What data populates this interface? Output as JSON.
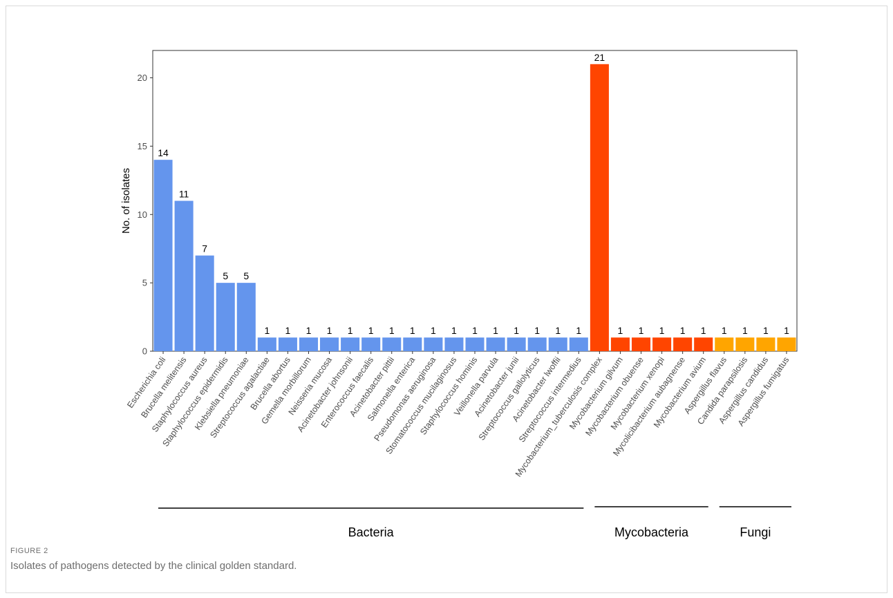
{
  "chart_data": {
    "type": "bar",
    "ylabel": "No. of isolates",
    "xlabel": "",
    "ylim": [
      0,
      22
    ],
    "yticks": [
      0,
      5,
      10,
      15,
      20
    ],
    "grid": false,
    "categories": [
      "Escherichia coli",
      "Brucella melitensis",
      "Staphylococcus aureus",
      "Staphylococcus epidermidis",
      "Klebsiella pneumoniae",
      "Streptococcus agalactiae",
      "Brucella abortus",
      "Gemella morbillorum",
      "Neisseria mucosa",
      "Acinetobacter johnsonii",
      "Enterococcus faecalis",
      "Acinetobacter pittii",
      "Salmonella enterica",
      "Pseudomonas aeruginosa",
      "Stomatococcus mucilaginosus",
      "Staphylococcus hominis",
      "Veillonella parvula",
      "Acinetobacter junii",
      "Streptococcus gallolyticus",
      "Acinetobacter lwoffii",
      "Streptococcus intermedius",
      "Mycobacterium_tuberculosis complex",
      "Mycobacterium gilvum",
      "Mycobacterium obuense",
      "Mycobacterium xenopi",
      "Mycolicibacterium aubagnense",
      "Mycobacterium avium",
      "Aspergillus flavus",
      "Candida parapsilosis",
      "Aspergillus candidus",
      "Aspergillus fumigatus"
    ],
    "values": [
      14,
      11,
      7,
      5,
      5,
      1,
      1,
      1,
      1,
      1,
      1,
      1,
      1,
      1,
      1,
      1,
      1,
      1,
      1,
      1,
      1,
      21,
      1,
      1,
      1,
      1,
      1,
      1,
      1,
      1,
      1
    ],
    "groups": [
      {
        "name": "Bacteria",
        "start": 0,
        "end": 20,
        "color": "#6495ED"
      },
      {
        "name": "Mycobacteria",
        "start": 21,
        "end": 26,
        "color": "#FF4500"
      },
      {
        "name": "Fungi",
        "start": 27,
        "end": 30,
        "color": "#FFA500"
      }
    ]
  },
  "caption": {
    "label": "FIGURE 2",
    "text": "Isolates of pathogens detected by the clinical golden standard."
  }
}
